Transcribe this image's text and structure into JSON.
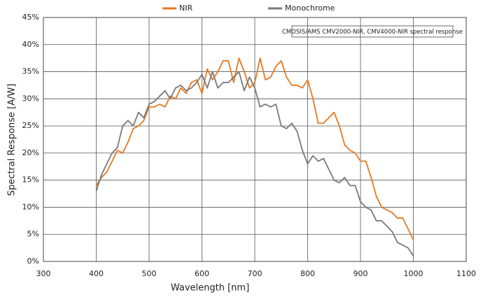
{
  "chart_data": {
    "type": "line",
    "xlabel": "Wavelength [nm]",
    "ylabel": "Spectral Response [A/W]",
    "annotation": "CMOSIS/AMS CMV2000-NIR, CMV4000-NIR spectral response",
    "x": [
      400,
      410,
      420,
      430,
      440,
      450,
      460,
      470,
      480,
      490,
      500,
      510,
      520,
      530,
      540,
      550,
      560,
      570,
      580,
      590,
      600,
      610,
      620,
      630,
      640,
      650,
      660,
      670,
      680,
      690,
      700,
      710,
      720,
      730,
      740,
      750,
      760,
      770,
      780,
      790,
      800,
      810,
      820,
      830,
      840,
      850,
      860,
      870,
      880,
      890,
      900,
      910,
      920,
      930,
      940,
      950,
      960,
      970,
      980,
      990,
      1000
    ],
    "series": [
      {
        "name": "NIR",
        "color": "#e8781e",
        "values": [
          14,
          15.5,
          16.5,
          18.5,
          20.5,
          20,
          22,
          24.5,
          25,
          26,
          28.5,
          28.5,
          29,
          28.5,
          30.5,
          30,
          32,
          31,
          33,
          33.5,
          31,
          35.5,
          33.5,
          35,
          37,
          37,
          33,
          37.5,
          35,
          32,
          33,
          37.5,
          33.5,
          34,
          36,
          37,
          34,
          32.5,
          32.5,
          32,
          33.5,
          30,
          25.5,
          25.5,
          26.5,
          27.5,
          25,
          21.5,
          20.5,
          20,
          18.5,
          18.5,
          15.5,
          12,
          10,
          9.5,
          9,
          8,
          8,
          6,
          4
        ]
      },
      {
        "name": "Monochrome",
        "color": "#7a7a7a",
        "values": [
          13,
          16,
          18,
          20,
          21,
          25,
          26,
          25,
          27.5,
          26.5,
          29,
          29.5,
          30.5,
          31.5,
          30,
          32,
          32.5,
          31.5,
          32,
          33,
          34.5,
          32,
          35,
          32,
          33,
          33,
          34,
          35,
          31.5,
          34,
          32,
          28.5,
          29,
          28.5,
          29,
          25,
          24.5,
          25.5,
          24,
          20.5,
          18,
          19.5,
          18.5,
          19,
          17,
          15,
          14.5,
          15.5,
          14,
          14,
          11,
          10,
          9.5,
          7.5,
          7.5,
          6.5,
          5.5,
          3.5,
          3,
          2.5,
          1
        ]
      }
    ],
    "xlim": [
      300,
      1100
    ],
    "xticks": [
      300,
      400,
      500,
      600,
      700,
      800,
      900,
      1000,
      1100
    ],
    "ylim": [
      0,
      45
    ],
    "yticks": [
      {
        "value": 0,
        "label": "0%"
      },
      {
        "value": 5,
        "label": "5%"
      },
      {
        "value": 10,
        "label": "10%"
      },
      {
        "value": 15,
        "label": "15%"
      },
      {
        "value": 20,
        "label": "20%"
      },
      {
        "value": 25,
        "label": "25%"
      },
      {
        "value": 30,
        "label": "30%"
      },
      {
        "value": 35,
        "label": "35%"
      },
      {
        "value": 40,
        "label": "40%"
      },
      {
        "value": 45,
        "label": "45%"
      }
    ],
    "grid": true
  }
}
